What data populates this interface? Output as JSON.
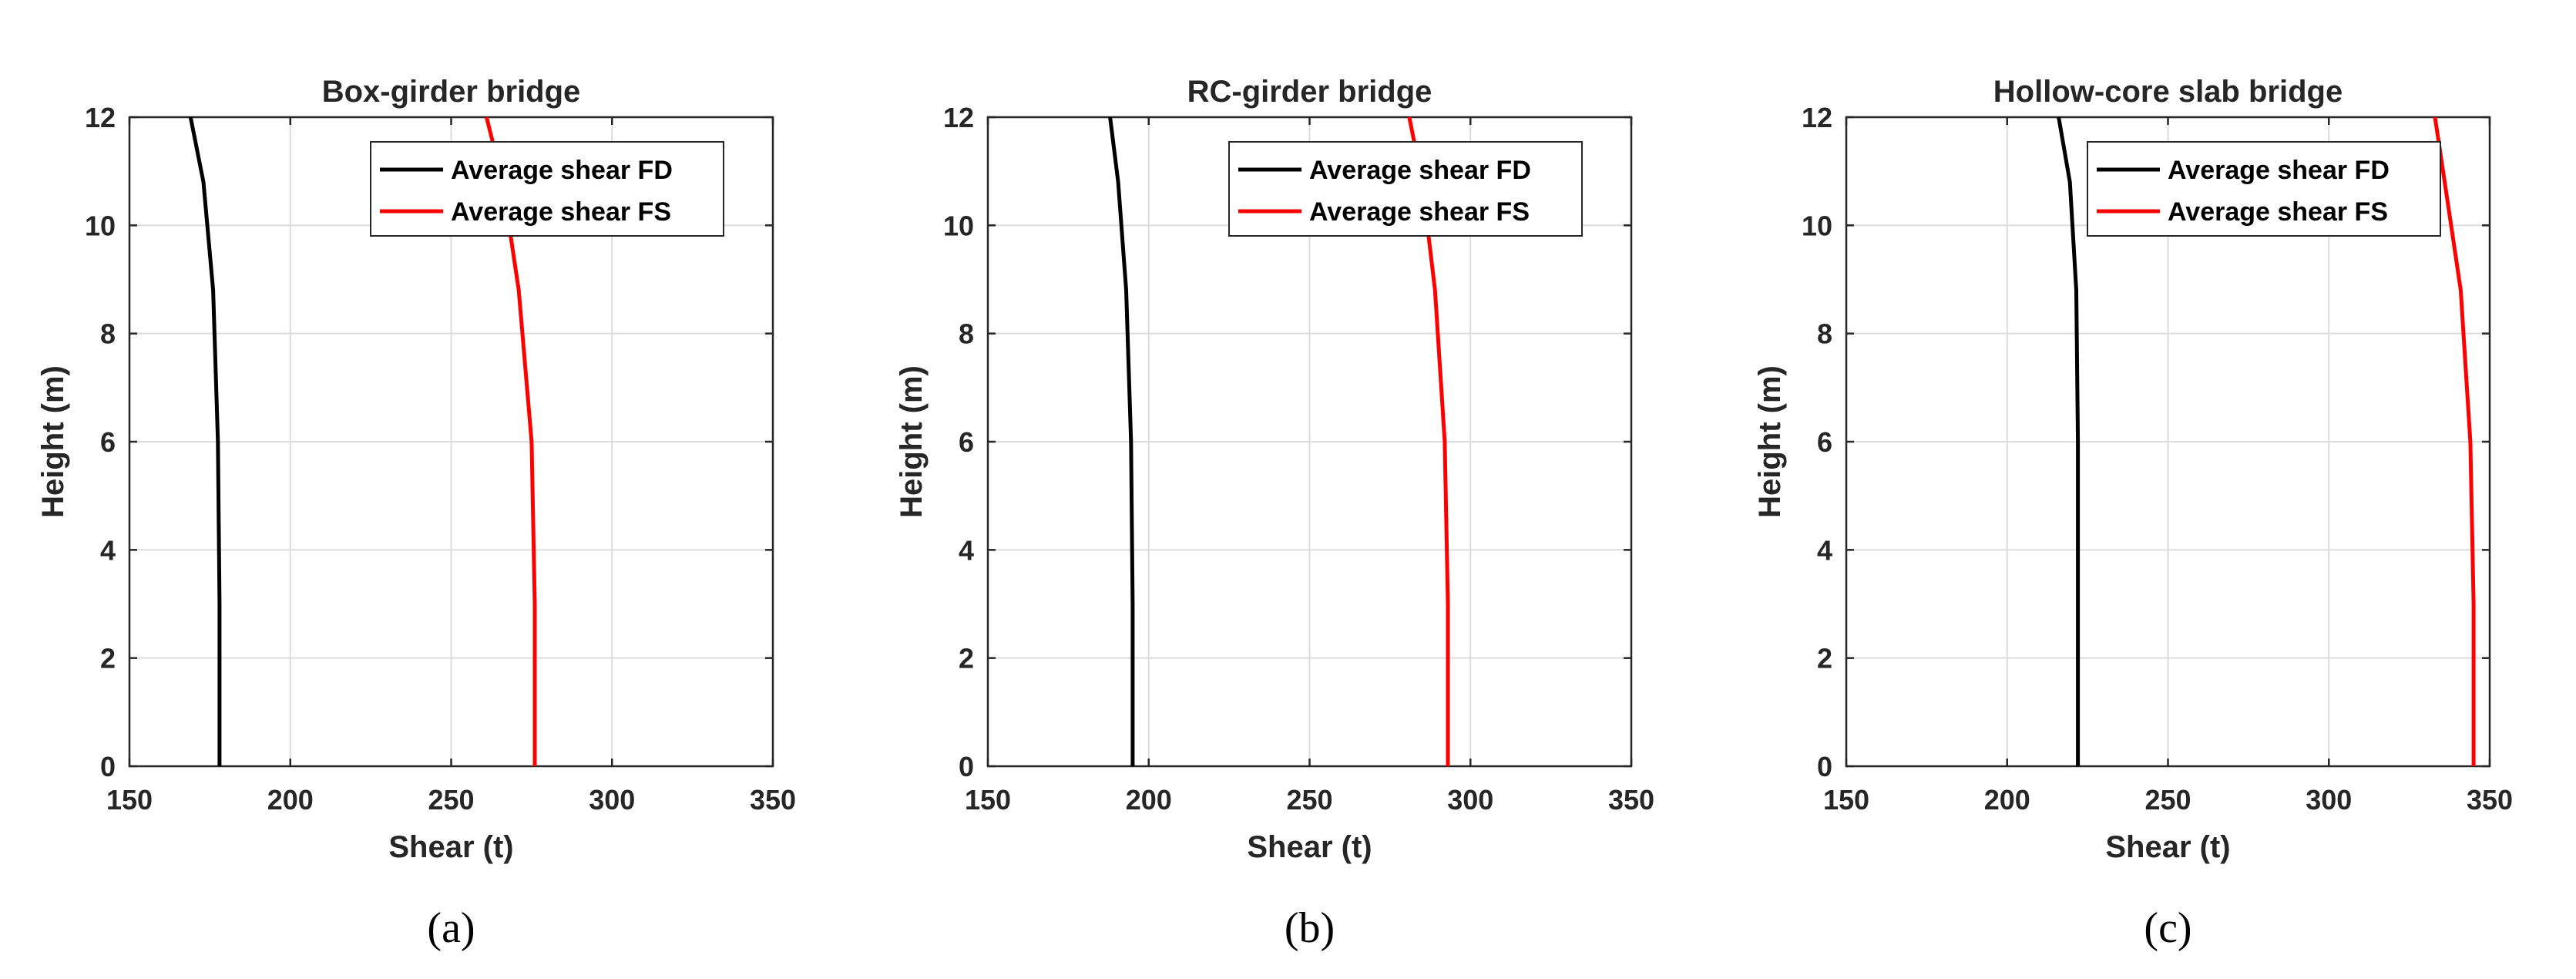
{
  "chart_data": [
    {
      "type": "line",
      "title": "Box-girder bridge",
      "xlabel": "Shear (t)",
      "ylabel": "Height (m)",
      "xlim": [
        150,
        350
      ],
      "ylim": [
        0,
        12
      ],
      "xticks": [
        "150",
        "200",
        "250",
        "300",
        "350"
      ],
      "yticks": [
        "0",
        "2",
        "4",
        "6",
        "8",
        "10",
        "12"
      ],
      "grid": true,
      "legend_position": "top-right",
      "sublabel": "(a)",
      "series": [
        {
          "name": "Average shear FD",
          "color": "#000000",
          "points": [
            [
              178,
              0
            ],
            [
              178,
              3
            ],
            [
              177.5,
              6
            ],
            [
              176,
              8.8
            ],
            [
              173,
              10.8
            ],
            [
              169,
              12
            ]
          ]
        },
        {
          "name": "Average shear FS",
          "color": "#ff0000",
          "points": [
            [
              276,
              0
            ],
            [
              276,
              3
            ],
            [
              275,
              6
            ],
            [
              271,
              8.8
            ],
            [
              266,
              10.8
            ],
            [
              261,
              12
            ]
          ]
        }
      ]
    },
    {
      "type": "line",
      "title": "RC-girder bridge",
      "xlabel": "Shear (t)",
      "ylabel": "Height (m)",
      "xlim": [
        150,
        350
      ],
      "ylim": [
        0,
        12
      ],
      "xticks": [
        "150",
        "200",
        "250",
        "300",
        "350"
      ],
      "yticks": [
        "0",
        "2",
        "4",
        "6",
        "8",
        "10",
        "12"
      ],
      "grid": true,
      "legend_position": "top-right",
      "sublabel": "(b)",
      "series": [
        {
          "name": "Average shear FD",
          "color": "#000000",
          "points": [
            [
              195,
              0
            ],
            [
              195,
              3
            ],
            [
              194.5,
              6
            ],
            [
              193,
              8.8
            ],
            [
              190.5,
              10.8
            ],
            [
              188,
              12
            ]
          ]
        },
        {
          "name": "Average shear FS",
          "color": "#ff0000",
          "points": [
            [
              293,
              0
            ],
            [
              293,
              3
            ],
            [
              292,
              6
            ],
            [
              289,
              8.8
            ],
            [
              285,
              10.8
            ],
            [
              281,
              12
            ]
          ]
        }
      ]
    },
    {
      "type": "line",
      "title": "Hollow-core slab bridge",
      "xlabel": "Shear (t)",
      "ylabel": "Height (m)",
      "xlim": [
        150,
        350
      ],
      "ylim": [
        0,
        12
      ],
      "xticks": [
        "150",
        "200",
        "250",
        "300",
        "350"
      ],
      "yticks": [
        "0",
        "2",
        "4",
        "6",
        "8",
        "10",
        "12"
      ],
      "grid": true,
      "legend_position": "top-right",
      "sublabel": "(c)",
      "series": [
        {
          "name": "Average shear FD",
          "color": "#000000",
          "points": [
            [
              222,
              0
            ],
            [
              222,
              3
            ],
            [
              222,
              6
            ],
            [
              221.5,
              8.8
            ],
            [
              219.5,
              10.8
            ],
            [
              216,
              12
            ]
          ]
        },
        {
          "name": "Average shear FS",
          "color": "#ff0000",
          "points": [
            [
              345,
              0
            ],
            [
              345,
              3
            ],
            [
              344,
              6
            ],
            [
              341,
              8.8
            ],
            [
              336,
              10.8
            ],
            [
              333,
              12
            ]
          ]
        }
      ]
    }
  ]
}
